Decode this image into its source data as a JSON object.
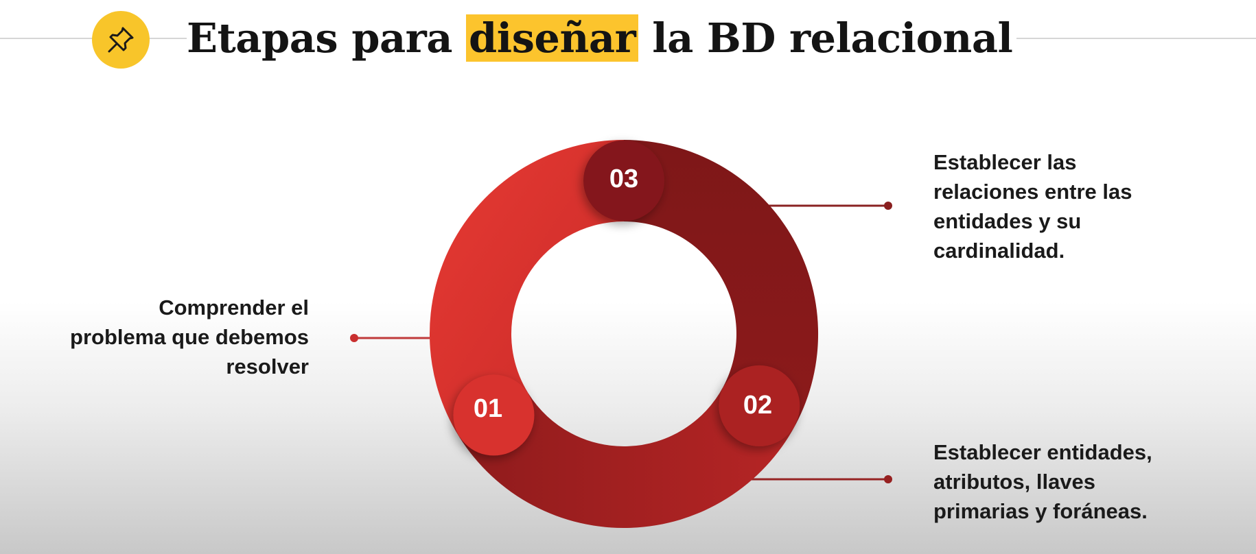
{
  "title": {
    "before": "Etapas para ",
    "highlight": "diseñar",
    "after": " la BD relacional"
  },
  "icon": "pushpin-icon",
  "colors": {
    "badge": "#f8c52a",
    "highlight": "#fcc42d",
    "segment_01": "#d8312f",
    "segment_02": "#ab2222",
    "segment_03": "#84191a"
  },
  "steps": [
    {
      "number": "01",
      "lines": [
        "Comprender el",
        "problema que debemos",
        "resolver"
      ]
    },
    {
      "number": "02",
      "lines": [
        "Establecer entidades,",
        "atributos, llaves",
        "primarias y foráneas."
      ]
    },
    {
      "number": "03",
      "lines": [
        "Establecer las",
        "relaciones entre las",
        "entidades y su",
        "cardinalidad."
      ]
    }
  ]
}
